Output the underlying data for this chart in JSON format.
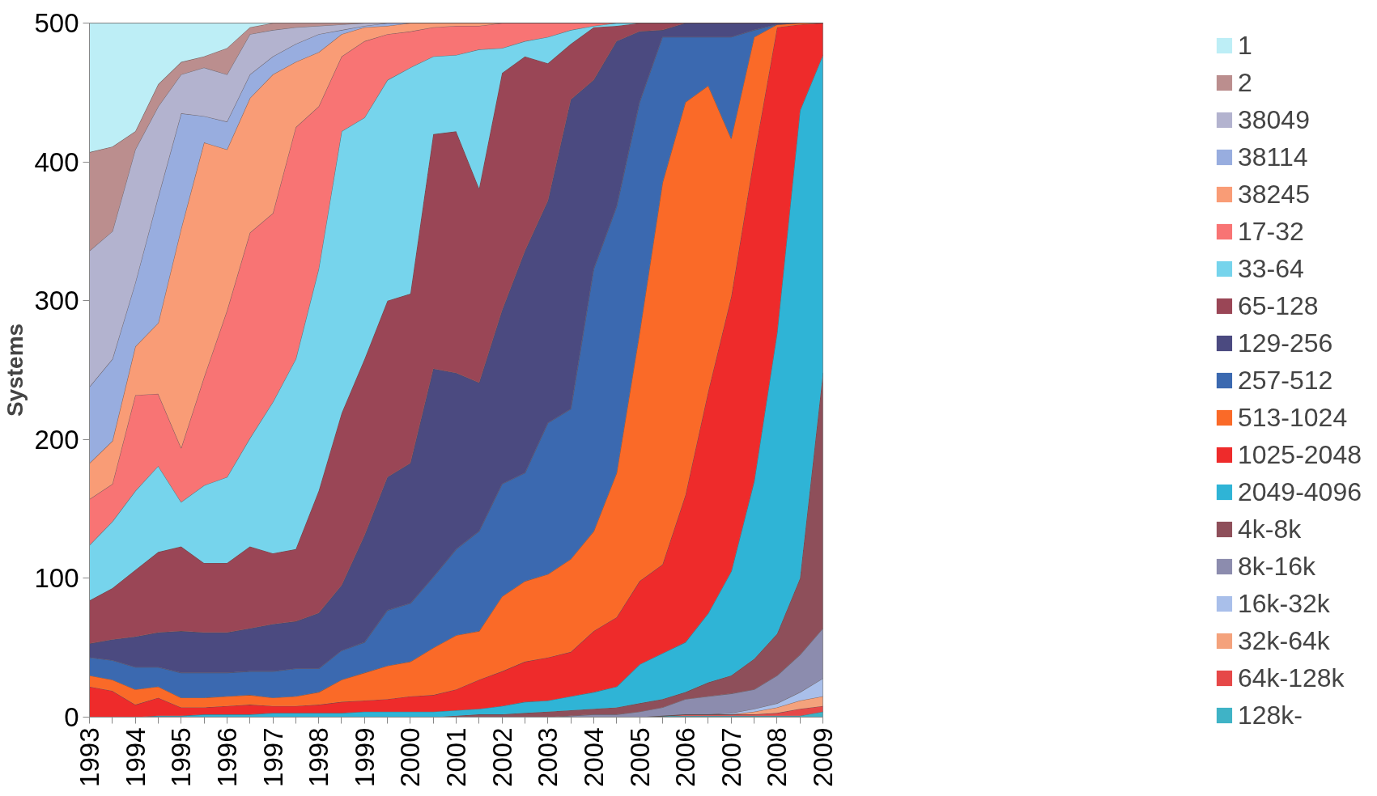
{
  "chart_data": {
    "type": "area",
    "ylabel": "Systems",
    "stacked": true,
    "legend": "right",
    "grid": false,
    "categories": [
      "1993",
      null,
      "1994",
      null,
      "1995",
      null,
      "1996",
      null,
      "1997",
      null,
      "1998",
      null,
      "1999",
      null,
      "2000",
      null,
      "2001",
      null,
      "2002",
      null,
      "2003",
      null,
      "2004",
      null,
      "2005",
      null,
      "2006",
      null,
      "2007",
      null,
      "2008",
      null,
      "2009"
    ],
    "ylim": [
      0,
      500
    ],
    "yticks": [
      0,
      100,
      200,
      300,
      400,
      500
    ],
    "series": [
      {
        "name": "128k-",
        "color": "#3fb3c6",
        "values": [
          0,
          0,
          0,
          0,
          0,
          0,
          0,
          0,
          0,
          0,
          0,
          0,
          0,
          0,
          0,
          0,
          0,
          0,
          0,
          0,
          0,
          0,
          0,
          0,
          0,
          1,
          1,
          1,
          1,
          1,
          1,
          1,
          4
        ]
      },
      {
        "name": "64k-128k",
        "color": "#e64848",
        "values": [
          0,
          0,
          0,
          0,
          0,
          0,
          0,
          0,
          0,
          0,
          0,
          0,
          0,
          0,
          0,
          0,
          0,
          0,
          0,
          0,
          0,
          0,
          0,
          0,
          0,
          0,
          1,
          1,
          1,
          1,
          2,
          5,
          4
        ]
      },
      {
        "name": "32k-64k",
        "color": "#f4a27c",
        "values": [
          0,
          0,
          0,
          0,
          0,
          0,
          0,
          0,
          0,
          0,
          0,
          0,
          0,
          0,
          0,
          0,
          0,
          0,
          0,
          0,
          0,
          0,
          0,
          0,
          0,
          0,
          0,
          0,
          0,
          2,
          4,
          6,
          7
        ]
      },
      {
        "name": "16k-32k",
        "color": "#a9bfea",
        "values": [
          0,
          0,
          0,
          0,
          0,
          0,
          0,
          0,
          0,
          0,
          0,
          0,
          0,
          0,
          0,
          0,
          0,
          0,
          0,
          0,
          0,
          0,
          0,
          0,
          0,
          0,
          0,
          0,
          1,
          2,
          3,
          6,
          13
        ]
      },
      {
        "name": "8k-16k",
        "color": "#8c8cae",
        "values": [
          0,
          0,
          0,
          0,
          0,
          0,
          0,
          0,
          0,
          0,
          0,
          0,
          0,
          0,
          0,
          0,
          0,
          0,
          0,
          0,
          0,
          1,
          2,
          2,
          4,
          6,
          11,
          13,
          14,
          14,
          20,
          27,
          36
        ]
      },
      {
        "name": "4k-8k",
        "color": "#8e4f5a",
        "values": [
          0,
          0,
          0,
          0,
          0,
          0,
          0,
          0,
          0,
          0,
          0,
          0,
          0,
          0,
          0,
          0,
          1,
          2,
          2,
          3,
          4,
          4,
          4,
          5,
          6,
          6,
          5,
          10,
          13,
          22,
          30,
          55,
          184
        ]
      },
      {
        "name": "2049-4096",
        "color": "#2fb4d6",
        "values": [
          0,
          0,
          0,
          1,
          1,
          2,
          2,
          2,
          3,
          3,
          3,
          3,
          4,
          4,
          4,
          4,
          4,
          4,
          6,
          8,
          8,
          10,
          12,
          15,
          28,
          33,
          36,
          50,
          75,
          128,
          217,
          337,
          229
        ]
      },
      {
        "name": "1025-2048",
        "color": "#ee2b2b",
        "values": [
          22,
          19,
          9,
          13,
          6,
          5,
          6,
          7,
          5,
          5,
          6,
          8,
          8,
          9,
          11,
          12,
          15,
          21,
          25,
          29,
          31,
          32,
          44,
          50,
          60,
          64,
          106,
          160,
          198,
          234,
          220,
          62,
          23
        ]
      },
      {
        "name": "513-1024",
        "color": "#fa6a28",
        "values": [
          8,
          8,
          11,
          8,
          7,
          7,
          7,
          7,
          6,
          7,
          9,
          16,
          20,
          24,
          25,
          34,
          39,
          35,
          54,
          58,
          60,
          67,
          72,
          104,
          179,
          275,
          283,
          220,
          114,
          86,
          2,
          1,
          0
        ]
      },
      {
        "name": "257-512",
        "color": "#3b69b0",
        "values": [
          13,
          14,
          16,
          14,
          18,
          18,
          17,
          17,
          19,
          20,
          17,
          21,
          22,
          40,
          42,
          51,
          62,
          72,
          81,
          78,
          109,
          108,
          189,
          192,
          166,
          105,
          47,
          35,
          73,
          5,
          0,
          0,
          0
        ]
      },
      {
        "name": "129-256",
        "color": "#4b4a80",
        "values": [
          10,
          15,
          22,
          25,
          30,
          29,
          29,
          31,
          34,
          34,
          40,
          47,
          77,
          96,
          101,
          150,
          127,
          107,
          125,
          160,
          160,
          223,
          136,
          119,
          51,
          5,
          10,
          10,
          10,
          5,
          1,
          0,
          0
        ]
      },
      {
        "name": "65-128",
        "color": "#9a4656",
        "values": [
          31,
          37,
          48,
          58,
          61,
          50,
          50,
          59,
          51,
          52,
          88,
          124,
          127,
          127,
          122,
          169,
          174,
          140,
          171,
          140,
          99,
          40,
          38,
          11,
          6,
          5,
          0,
          0,
          0,
          0,
          0,
          0,
          0
        ]
      },
      {
        "name": "33-64",
        "color": "#76d4ec",
        "values": [
          40,
          48,
          57,
          62,
          32,
          56,
          62,
          78,
          109,
          137,
          160,
          203,
          174,
          159,
          163,
          56,
          55,
          100,
          18,
          11,
          19,
          10,
          1,
          2,
          0,
          0,
          0,
          0,
          0,
          0,
          0,
          0,
          0
        ]
      },
      {
        "name": "17-32",
        "color": "#f87474",
        "values": [
          33,
          27,
          69,
          52,
          39,
          78,
          120,
          148,
          136,
          167,
          117,
          54,
          55,
          33,
          26,
          21,
          21,
          17,
          18,
          13,
          10,
          5,
          2,
          0,
          0,
          0,
          0,
          0,
          0,
          0,
          0,
          0,
          0
        ]
      },
      {
        "name": "38245",
        "color": "#f99c76",
        "values": [
          26,
          31,
          35,
          51,
          158,
          169,
          116,
          97,
          100,
          47,
          39,
          16,
          10,
          6,
          6,
          3,
          2,
          2,
          0,
          0,
          0,
          0,
          0,
          0,
          0,
          0,
          0,
          0,
          0,
          0,
          0,
          0,
          0
        ]
      },
      {
        "name": "38114",
        "color": "#98addf",
        "values": [
          55,
          59,
          46,
          91,
          83,
          19,
          20,
          17,
          13,
          13,
          13,
          3,
          1,
          2,
          0,
          0,
          0,
          0,
          0,
          0,
          0,
          0,
          0,
          0,
          0,
          0,
          0,
          0,
          0,
          0,
          0,
          0,
          0
        ]
      },
      {
        "name": "38049",
        "color": "#b3b3cf",
        "values": [
          98,
          92,
          96,
          65,
          28,
          35,
          34,
          29,
          19,
          12,
          6,
          4,
          2,
          0,
          0,
          0,
          0,
          0,
          0,
          0,
          0,
          0,
          0,
          0,
          0,
          0,
          0,
          0,
          0,
          0,
          0,
          0,
          0
        ]
      },
      {
        "name": "2",
        "color": "#bb8e8e",
        "values": [
          71,
          61,
          13,
          16,
          9,
          8,
          19,
          5,
          5,
          3,
          2,
          1,
          0,
          0,
          0,
          0,
          0,
          0,
          0,
          0,
          0,
          0,
          0,
          0,
          0,
          0,
          0,
          0,
          0,
          0,
          0,
          0,
          0
        ]
      },
      {
        "name": "1",
        "color": "#bdeef6",
        "values": [
          93,
          89,
          78,
          44,
          28,
          24,
          18,
          3,
          0,
          0,
          0,
          0,
          0,
          0,
          0,
          0,
          0,
          0,
          0,
          0,
          0,
          0,
          0,
          0,
          0,
          0,
          0,
          0,
          0,
          0,
          0,
          0,
          0
        ]
      }
    ]
  }
}
